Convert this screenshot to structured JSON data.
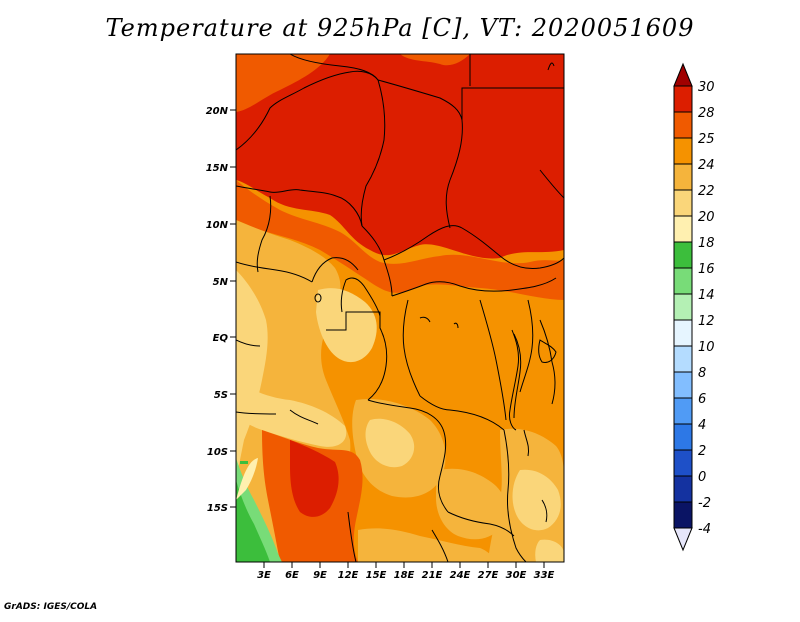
{
  "title": "Temperature at 925hPa [C], VT: 2020051609",
  "footer": "GrADS: IGES/COLA",
  "lat_labels": [
    "20N",
    "15N",
    "10N",
    "5N",
    "EQ",
    "5S",
    "10S",
    "15S"
  ],
  "lon_labels": [
    "3E",
    "6E",
    "9E",
    "12E",
    "15E",
    "18E",
    "21E",
    "24E",
    "27E",
    "30E",
    "33E"
  ],
  "colorbar": {
    "levels": [
      "30",
      "28",
      "25",
      "24",
      "22",
      "20",
      "18",
      "16",
      "14",
      "12",
      "10",
      "8",
      "6",
      "4",
      "2",
      "0",
      "-2",
      "-4"
    ],
    "colors": [
      "#a00000",
      "#dc1e00",
      "#f05a00",
      "#f59200",
      "#f5b43c",
      "#fad67a",
      "#fff0b0",
      "#3cbe3c",
      "#78dc78",
      "#b4f0b4",
      "#e6f5ff",
      "#b4dcff",
      "#82beff",
      "#509bf5",
      "#2d78e6",
      "#1e50c8",
      "#1432a0",
      "#0a1464",
      "#e6e6fa"
    ]
  }
}
